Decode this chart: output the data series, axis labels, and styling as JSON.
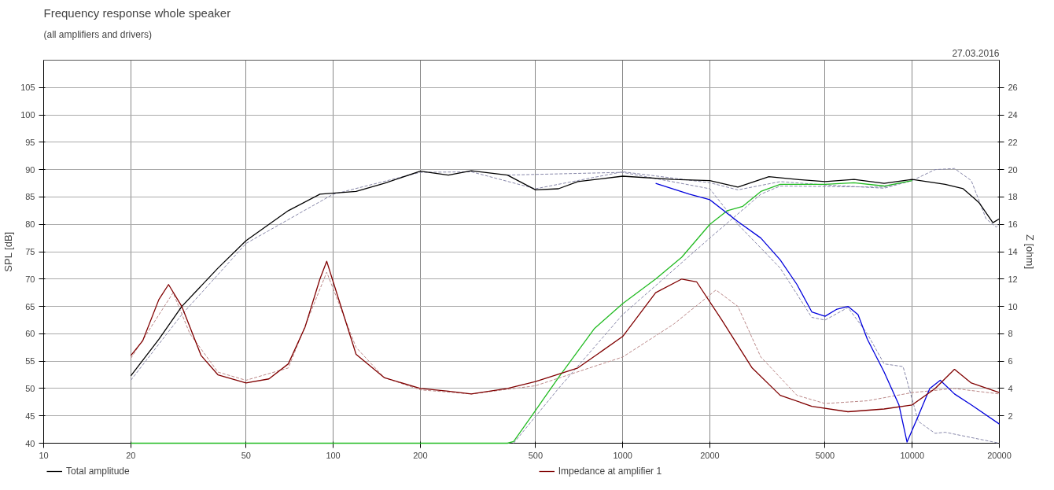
{
  "chart_data": {
    "type": "line",
    "title": "Frequency response whole speaker",
    "subtitle": "(all amplifiers and drivers)",
    "ylabel": "SPL [dB]",
    "y2label": "Z [ohm]",
    "annotations": [
      "27.03.2016"
    ],
    "log": "x",
    "grid": true,
    "legend": "bottom",
    "marker": "none",
    "xlim": [
      10,
      20000
    ],
    "xticks": [
      10,
      20,
      50,
      100,
      200,
      500,
      1000,
      2000,
      5000,
      10000,
      20000
    ],
    "ylim": [
      40,
      110
    ],
    "yticks": [
      40,
      45,
      50,
      55,
      60,
      65,
      70,
      75,
      80,
      85,
      90,
      95,
      100,
      105
    ],
    "y2lim": [
      0,
      28
    ],
    "y2ticks": [
      2,
      4,
      6,
      8,
      10,
      12,
      14,
      16,
      18,
      20,
      22,
      24,
      26
    ],
    "series": [
      {
        "color": "#8888aa",
        "line_style": "dashed",
        "x": [
          20,
          30,
          50,
          100,
          200,
          300,
          500,
          700,
          1000,
          2000,
          2500,
          3500,
          5000,
          8000,
          10000,
          12000,
          14000,
          16000,
          18000,
          19500,
          20000
        ],
        "values": [
          51.5,
          63.5,
          76.5,
          85.5,
          89.5,
          89.6,
          86.5,
          88,
          89.6,
          87.6,
          86.3,
          87.8,
          87.2,
          86.6,
          88,
          90,
          90.2,
          88,
          81,
          79.5,
          80
        ]
      },
      {
        "color": "#8888aa",
        "line_style": "dashed",
        "x": [
          420,
          600,
          1000,
          2000,
          3000,
          3500,
          8000,
          10000
        ],
        "values": [
          40,
          50,
          63.5,
          77.5,
          85.5,
          87,
          86.8,
          88
        ]
      },
      {
        "color": "#8888aa",
        "line_style": "dashed",
        "x": [
          400,
          1000,
          2000,
          2500,
          3500,
          4500,
          5000,
          6000,
          7000,
          8000,
          9300,
          10500,
          12000,
          13000,
          20000
        ],
        "values": [
          89,
          89.5,
          86.5,
          80,
          72,
          63,
          62.5,
          64.8,
          60,
          54.5,
          54,
          44,
          41.8,
          42,
          40
        ]
      },
      {
        "color": "#bb8888",
        "line_style": "dashed",
        "axis": "y2",
        "x": [
          20,
          28,
          32,
          40,
          50,
          70,
          95,
          120,
          150,
          200,
          300,
          500,
          1000,
          1500,
          2100,
          2500,
          3000,
          4000,
          5000,
          7000,
          10000,
          14000,
          20000
        ],
        "values": [
          6.2,
          11,
          8,
          5.2,
          4.6,
          5.5,
          12.5,
          7,
          4.8,
          3.9,
          3.6,
          4.2,
          6.3,
          8.7,
          11.2,
          10,
          6.3,
          3.5,
          2.9,
          3.1,
          3.7,
          4,
          3.6
        ]
      },
      {
        "color": "#22bb22",
        "x": [
          20,
          400,
          420,
          500,
          600,
          800,
          1000,
          1300,
          1600,
          2000,
          2300,
          2600,
          3000,
          3500,
          5000,
          6300,
          8000,
          10000
        ],
        "values": [
          40,
          40,
          40.3,
          46,
          52,
          61,
          65.5,
          70,
          74,
          80,
          82.5,
          83.3,
          86,
          87.3,
          87.3,
          87.6,
          87,
          88
        ]
      },
      {
        "color": "#0000dd",
        "x": [
          1300,
          1700,
          2000,
          2500,
          3000,
          3500,
          4000,
          4500,
          5000,
          5500,
          6000,
          6500,
          7000,
          8000,
          9000,
          9600,
          10500,
          11500,
          12500,
          14000,
          16000,
          20000
        ],
        "values": [
          87.5,
          85.5,
          84.5,
          80.5,
          77.5,
          73.5,
          69,
          64,
          63.2,
          64.5,
          65,
          63.5,
          59,
          53,
          47,
          40.2,
          45,
          50,
          51.5,
          49,
          47,
          43.5
        ]
      },
      {
        "name": "Total amplitude",
        "color": "#000000",
        "x": [
          20,
          25,
          30,
          40,
          50,
          70,
          90,
          120,
          150,
          200,
          250,
          300,
          400,
          500,
          600,
          700,
          1000,
          1500,
          2000,
          2500,
          3200,
          4000,
          5000,
          6300,
          8000,
          10000,
          13000,
          15000,
          17000,
          19000,
          20000
        ],
        "values": [
          52.3,
          59,
          65,
          72,
          77,
          82.5,
          85.5,
          86,
          87.5,
          89.7,
          89,
          89.8,
          89,
          86.3,
          86.5,
          87.8,
          88.8,
          88.2,
          88,
          86.8,
          88.7,
          88.2,
          87.8,
          88.2,
          87.5,
          88.2,
          87.3,
          86.5,
          84,
          80.3,
          81
        ]
      },
      {
        "name": "Impedance at amplifier 1",
        "color": "#800000",
        "axis": "y2",
        "x": [
          20,
          22,
          25,
          27,
          30,
          35,
          40,
          50,
          60,
          70,
          80,
          90,
          95,
          100,
          120,
          150,
          200,
          250,
          300,
          400,
          500,
          700,
          1000,
          1300,
          1600,
          1800,
          2200,
          2800,
          3500,
          4500,
          6000,
          8000,
          10000,
          12000,
          14000,
          16000,
          20000
        ],
        "values": [
          6.4,
          7.5,
          10.5,
          11.6,
          10,
          6.4,
          5,
          4.4,
          4.7,
          5.8,
          8.5,
          12,
          13.3,
          11.8,
          6.5,
          4.8,
          4,
          3.8,
          3.6,
          4,
          4.5,
          5.5,
          7.8,
          11,
          12,
          11.8,
          9,
          5.5,
          3.5,
          2.7,
          2.3,
          2.5,
          2.8,
          4,
          5.4,
          4.4,
          3.7
        ]
      }
    ]
  }
}
